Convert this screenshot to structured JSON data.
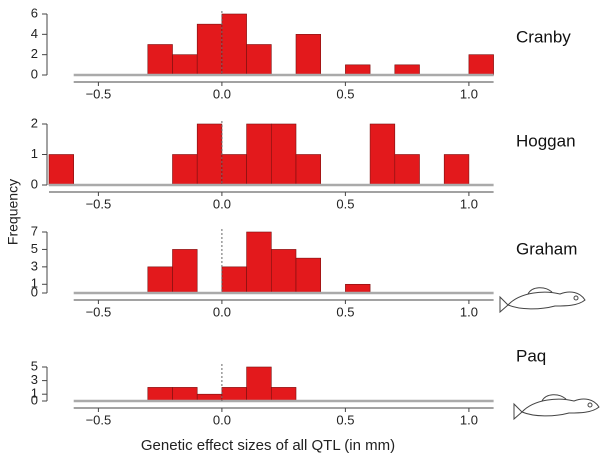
{
  "chart_data": [
    {
      "type": "histogram",
      "title": "Cranby",
      "ylabel": "Frequency",
      "color": "#e3191c",
      "bins": [
        -0.3,
        -0.2,
        -0.1,
        0.0,
        0.1,
        0.2,
        0.3,
        0.4,
        0.5,
        0.6,
        0.7,
        0.8,
        0.9,
        1.0,
        1.1
      ],
      "values": [
        3,
        2,
        5,
        6,
        3,
        0,
        4,
        0,
        1,
        0,
        1,
        0,
        0,
        2
      ],
      "xlim": [
        -0.6,
        1.1
      ],
      "ylim": [
        0,
        6
      ],
      "yticks": [
        0,
        2,
        4,
        6
      ],
      "xticks": [
        {
          "value": -0.5,
          "label": "−0.5"
        },
        {
          "value": 0,
          "label": "0.0"
        },
        0.5,
        {
          "value": 1,
          "label": "1.0"
        }
      ]
    },
    {
      "type": "histogram",
      "title": "Hoggan",
      "color": "#e3191c",
      "bins": [
        -0.7,
        -0.6,
        -0.5,
        -0.4,
        -0.3,
        -0.2,
        -0.1,
        0.0,
        0.1,
        0.2,
        0.3,
        0.4,
        0.5,
        0.6,
        0.7,
        0.8,
        0.9,
        1.0
      ],
      "values": [
        1,
        0,
        0,
        0,
        0,
        1,
        2,
        1,
        2,
        2,
        1,
        0,
        0,
        2,
        1,
        0,
        1
      ],
      "xlim": [
        -0.7,
        1.1
      ],
      "ylim": [
        0,
        2
      ],
      "yticks": [
        0,
        1,
        2
      ],
      "xticks": [
        {
          "value": -0.5,
          "label": "−0.5"
        },
        {
          "value": 0,
          "label": "0.0"
        },
        0.5,
        {
          "value": 1,
          "label": "1.0"
        }
      ]
    },
    {
      "type": "histogram",
      "title": "Graham",
      "color": "#e3191c",
      "bins": [
        -0.3,
        -0.2,
        -0.1,
        0.0,
        0.1,
        0.2,
        0.3,
        0.4,
        0.5,
        0.6
      ],
      "values": [
        3,
        5,
        0,
        3,
        7,
        5,
        4,
        0,
        1
      ],
      "xlim": [
        -0.6,
        1.1
      ],
      "ylim": [
        0,
        7
      ],
      "yticks": [
        0,
        1,
        3,
        5,
        7
      ],
      "xticks": [
        {
          "value": -0.5,
          "label": "−0.5"
        },
        {
          "value": 0,
          "label": "0.0"
        },
        0.5,
        {
          "value": 1,
          "label": "1.0"
        }
      ]
    },
    {
      "type": "histogram",
      "title": "Paq",
      "xlabel": "Genetic effect sizes of all QTL (in mm)",
      "color": "#e3191c",
      "bins": [
        -0.3,
        -0.2,
        -0.1,
        0.0,
        0.1,
        0.2,
        0.3
      ],
      "values": [
        2,
        2,
        1,
        2,
        5,
        2
      ],
      "xlim": [
        -0.6,
        1.1
      ],
      "ylim": [
        0,
        5
      ],
      "yticks": [
        0,
        1,
        3,
        5
      ],
      "xticks": [
        {
          "value": -0.5,
          "label": "−0.5"
        },
        {
          "value": 0,
          "label": "0.0"
        },
        0.5,
        {
          "value": 1,
          "label": "1.0"
        }
      ]
    }
  ]
}
